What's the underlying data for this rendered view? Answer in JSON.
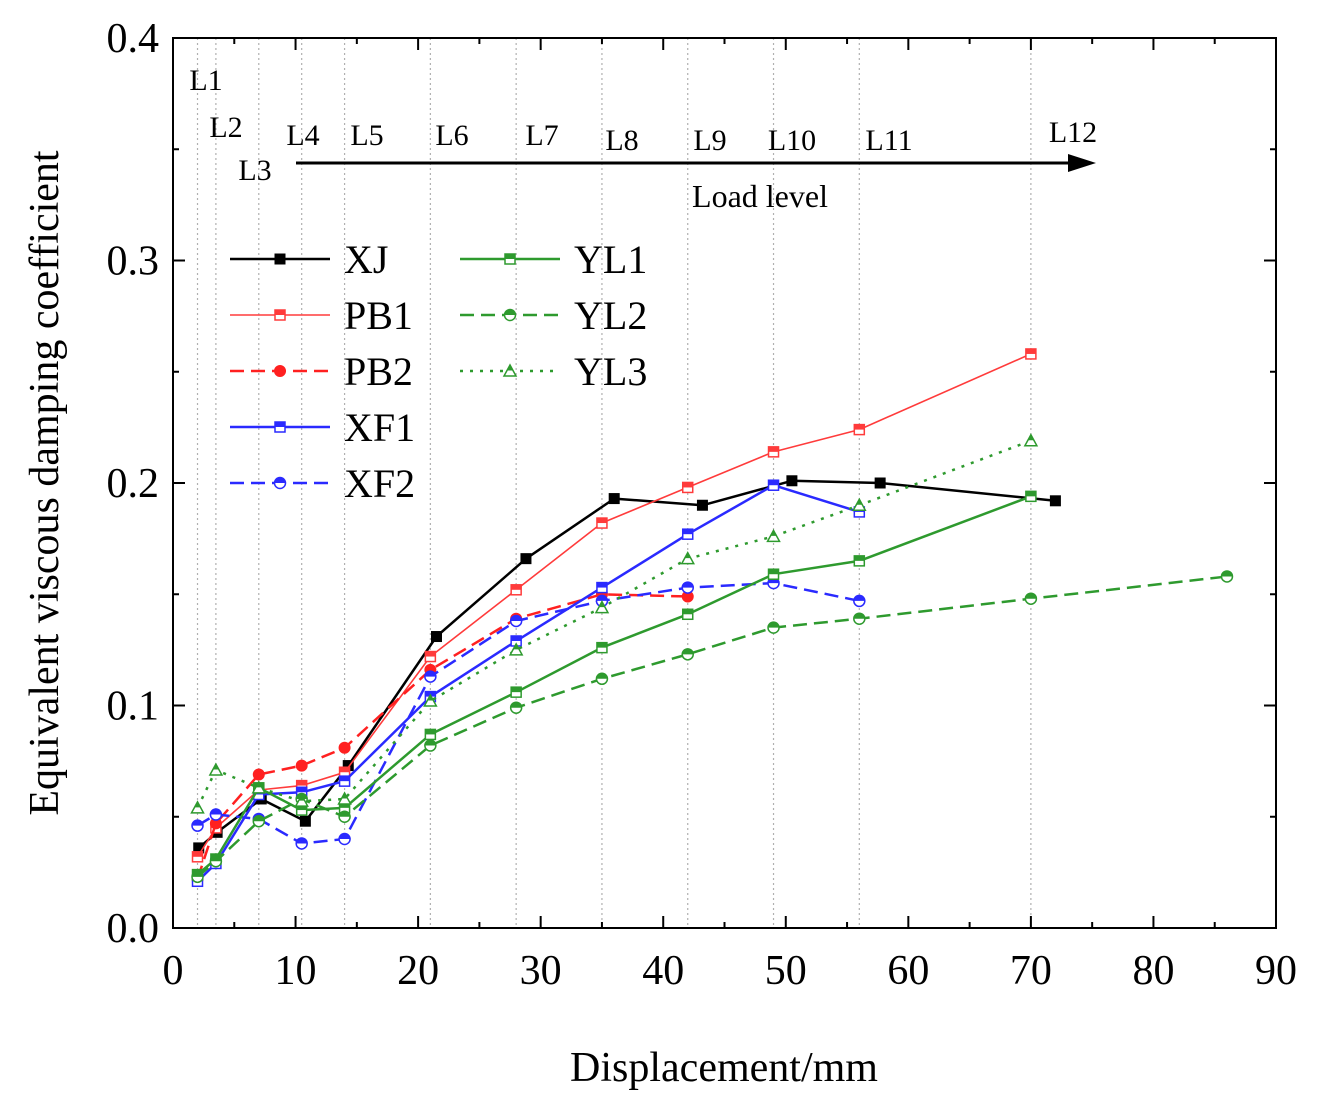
{
  "chart_data": {
    "type": "line",
    "title": "",
    "xlabel": "Displacement/mm",
    "ylabel": "Equivalent viscous damping coefficient",
    "xlim": [
      0,
      90
    ],
    "ylim": [
      0,
      0.4
    ],
    "xticks": [
      0,
      10,
      20,
      30,
      40,
      50,
      60,
      70,
      80,
      90
    ],
    "xtick_labels": [
      "0",
      "10",
      "20",
      "30",
      "40",
      "50",
      "60",
      "70",
      "80",
      "90"
    ],
    "yticks": [
      0,
      0.1,
      0.2,
      0.3,
      0.4
    ],
    "ytick_labels": [
      "0.0",
      "0.1",
      "0.2",
      "0.3",
      "0.4"
    ],
    "load_levels": [
      {
        "label": "L1",
        "x": 2
      },
      {
        "label": "L2",
        "x": 3.5
      },
      {
        "label": "L3",
        "x": 7
      },
      {
        "label": "L4",
        "x": 10.5
      },
      {
        "label": "L5",
        "x": 14
      },
      {
        "label": "L6",
        "x": 21
      },
      {
        "label": "L7",
        "x": 28
      },
      {
        "label": "L8",
        "x": 35
      },
      {
        "label": "L9",
        "x": 42
      },
      {
        "label": "L10",
        "x": 49
      },
      {
        "label": "L11",
        "x": 56
      },
      {
        "label": "L12",
        "x": 70
      }
    ],
    "load_arrow_label": "Load level",
    "legend_position": "upper-left",
    "series": [
      {
        "name": "XJ",
        "color": "#000000",
        "dash": "solid",
        "marker": "square-filled",
        "width": 2.5,
        "x": [
          2.1,
          3.6,
          7.2,
          10.8,
          14.3,
          21.5,
          28.8,
          36,
          43.2,
          50.5,
          57.7,
          72
        ],
        "y": [
          0.036,
          0.043,
          0.058,
          0.048,
          0.073,
          0.131,
          0.166,
          0.193,
          0.19,
          0.201,
          0.2,
          0.192
        ]
      },
      {
        "name": "PB1",
        "color": "#ff3b3b",
        "dash": "solid",
        "marker": "square-half",
        "width": 1.6,
        "x": [
          2,
          3.5,
          7,
          10.5,
          14,
          21,
          28,
          35,
          42,
          49,
          56,
          70
        ],
        "y": [
          0.032,
          0.045,
          0.062,
          0.064,
          0.07,
          0.122,
          0.152,
          0.182,
          0.198,
          0.214,
          0.224,
          0.258
        ]
      },
      {
        "name": "PB2",
        "color": "#ff2020",
        "dash": "dashed",
        "marker": "circle-filled",
        "width": 2.5,
        "x": [
          2,
          3.5,
          7,
          10.5,
          14,
          21,
          28,
          35,
          42
        ],
        "y": [
          0.022,
          0.047,
          0.069,
          0.073,
          0.081,
          0.116,
          0.139,
          0.15,
          0.149
        ]
      },
      {
        "name": "XF1",
        "color": "#2a2aff",
        "dash": "solid",
        "marker": "square-half",
        "width": 2.5,
        "x": [
          2,
          3.5,
          7,
          10.5,
          14,
          21,
          28,
          35,
          42,
          49,
          56
        ],
        "y": [
          0.021,
          0.029,
          0.06,
          0.061,
          0.066,
          0.104,
          0.129,
          0.153,
          0.177,
          0.199,
          0.187
        ]
      },
      {
        "name": "XF2",
        "color": "#2a2aff",
        "dash": "dashed",
        "marker": "circle-half",
        "width": 2.5,
        "x": [
          2,
          3.5,
          7,
          10.5,
          14,
          21,
          28,
          35,
          42,
          49,
          56
        ],
        "y": [
          0.046,
          0.051,
          0.049,
          0.038,
          0.04,
          0.113,
          0.138,
          0.147,
          0.153,
          0.155,
          0.147
        ]
      },
      {
        "name": "YL1",
        "color": "#2e9a2e",
        "dash": "solid",
        "marker": "square-half",
        "width": 2.5,
        "x": [
          2,
          3.5,
          7,
          10.5,
          14,
          21,
          28,
          35,
          42,
          49,
          56,
          70
        ],
        "y": [
          0.024,
          0.031,
          0.063,
          0.053,
          0.054,
          0.087,
          0.106,
          0.126,
          0.141,
          0.159,
          0.165,
          0.194
        ]
      },
      {
        "name": "YL2",
        "color": "#2e9a2e",
        "dash": "dashed",
        "marker": "circle-half",
        "width": 2.5,
        "x": [
          2,
          3.5,
          7,
          10.5,
          14,
          21,
          28,
          35,
          42,
          49,
          56,
          70,
          86
        ],
        "y": [
          0.023,
          0.03,
          0.048,
          0.058,
          0.05,
          0.082,
          0.099,
          0.112,
          0.123,
          0.135,
          0.139,
          0.148,
          0.158
        ]
      },
      {
        "name": "YL3",
        "color": "#2e9a2e",
        "dash": "dotted",
        "marker": "triangle-half",
        "width": 2.5,
        "x": [
          2,
          3.5,
          7,
          10.5,
          14,
          21,
          28,
          35,
          42,
          49,
          56,
          70
        ],
        "y": [
          0.054,
          0.071,
          0.063,
          0.057,
          0.058,
          0.102,
          0.125,
          0.144,
          0.166,
          0.176,
          0.19,
          0.219
        ]
      }
    ]
  }
}
